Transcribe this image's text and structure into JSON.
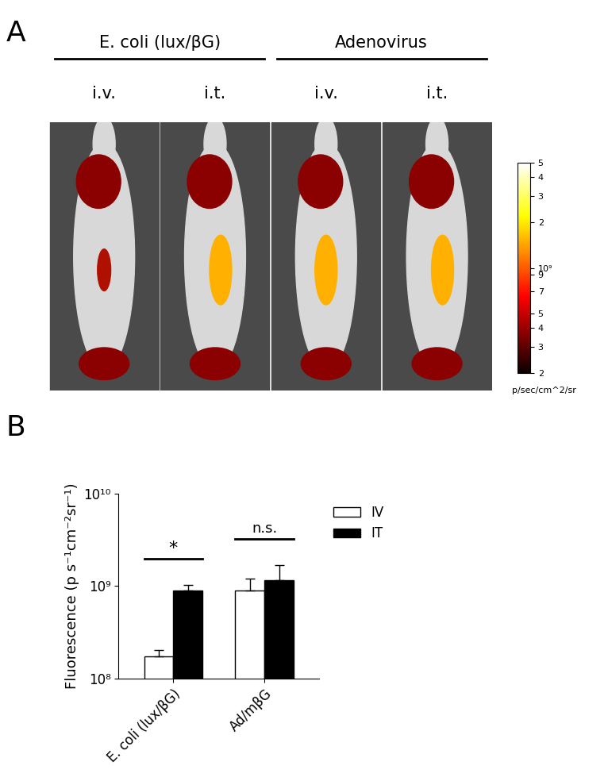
{
  "chart_data": [
    {
      "type": "image",
      "title": "A",
      "groups": [
        {
          "name": "E. coli (lux/βG)",
          "columns": [
            "i.v.",
            "i.t."
          ]
        },
        {
          "name": "Adenovirus",
          "columns": [
            "i.v.",
            "i.t."
          ]
        }
      ],
      "colorbar": {
        "log": true,
        "lim": [
          200000000,
          5000000000
        ],
        "ticks": [
          {
            "value": 5000000000,
            "label": "5"
          },
          {
            "value": 4000000000,
            "label": "4"
          },
          {
            "value": 3000000000,
            "label": "3"
          },
          {
            "value": 2000000000,
            "label": "2"
          },
          {
            "value": 1000000000,
            "label": "10⁹"
          },
          {
            "value": 900000000,
            "label": "9"
          },
          {
            "value": 700000000,
            "label": "7"
          },
          {
            "value": 500000000,
            "label": "5"
          },
          {
            "value": 400000000,
            "label": "4"
          },
          {
            "value": 300000000,
            "label": "3"
          },
          {
            "value": 200000000,
            "label": "2"
          }
        ],
        "label": "p/sec/cm^2/sr"
      }
    },
    {
      "type": "bar",
      "title": "B",
      "y_label": "Fluorescence (p s⁻¹cm⁻²sr⁻¹)",
      "categories": [
        "E. coli (lux/βG)",
        "Ad/mβG"
      ],
      "series": [
        {
          "name": "IV",
          "color": "#ffffff",
          "values": [
            175000000,
            900000000
          ],
          "errors": [
            30000000,
            300000000
          ]
        },
        {
          "name": "IT",
          "color": "#000000",
          "values": [
            900000000,
            1150000000
          ],
          "errors": [
            130000000,
            550000000
          ]
        }
      ],
      "log": "y",
      "ylim": [
        100000000,
        10000000000
      ],
      "yticks": [
        {
          "value": 100000000,
          "label": "10⁸"
        },
        {
          "value": 1000000000,
          "label": "10⁹"
        },
        {
          "value": 10000000000,
          "label": "10¹⁰"
        }
      ],
      "legend": "upper right",
      "annotations": [
        {
          "text": "*",
          "category": 0
        },
        {
          "text": "n.s.",
          "category": 1
        }
      ]
    }
  ]
}
